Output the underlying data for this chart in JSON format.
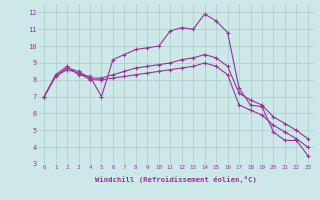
{
  "xlabel": "Windchill (Refroidissement éolien,°C)",
  "bg_color": "#cce8e8",
  "line_color": "#993399",
  "grid_color": "#aacccc",
  "xlim": [
    -0.5,
    23.5
  ],
  "ylim": [
    3,
    12.5
  ],
  "xticks": [
    0,
    1,
    2,
    3,
    4,
    5,
    6,
    7,
    8,
    9,
    10,
    11,
    12,
    13,
    14,
    15,
    16,
    17,
    18,
    19,
    20,
    21,
    22,
    23
  ],
  "yticks": [
    3,
    4,
    5,
    6,
    7,
    8,
    9,
    10,
    11,
    12
  ],
  "series": [
    {
      "x": [
        0,
        1,
        2,
        3,
        4,
        5,
        6,
        7,
        8,
        9,
        10,
        11,
        12,
        13,
        14,
        15,
        16,
        17,
        18,
        19,
        20,
        21,
        22,
        23
      ],
      "y": [
        7.0,
        8.3,
        8.8,
        8.3,
        8.2,
        7.0,
        9.2,
        9.5,
        9.8,
        9.9,
        10.0,
        10.9,
        11.1,
        11.0,
        11.9,
        11.5,
        10.8,
        7.5,
        6.5,
        6.4,
        4.9,
        4.4,
        4.4,
        3.5
      ]
    },
    {
      "x": [
        0,
        1,
        2,
        3,
        4,
        5,
        6,
        7,
        8,
        9,
        10,
        11,
        12,
        13,
        14,
        15,
        16,
        17,
        18,
        19,
        20,
        21,
        22,
        23
      ],
      "y": [
        7.0,
        8.2,
        8.7,
        8.5,
        8.1,
        8.1,
        8.3,
        8.5,
        8.7,
        8.8,
        8.9,
        9.0,
        9.2,
        9.3,
        9.5,
        9.3,
        8.8,
        7.2,
        6.8,
        6.5,
        5.8,
        5.4,
        5.0,
        4.5
      ]
    },
    {
      "x": [
        0,
        1,
        2,
        3,
        4,
        5,
        6,
        7,
        8,
        9,
        10,
        11,
        12,
        13,
        14,
        15,
        16,
        17,
        18,
        19,
        20,
        21,
        22,
        23
      ],
      "y": [
        7.0,
        8.2,
        8.6,
        8.4,
        8.0,
        8.0,
        8.1,
        8.2,
        8.3,
        8.4,
        8.5,
        8.6,
        8.7,
        8.8,
        9.0,
        8.8,
        8.3,
        6.5,
        6.2,
        5.9,
        5.3,
        4.9,
        4.5,
        4.0
      ]
    }
  ]
}
